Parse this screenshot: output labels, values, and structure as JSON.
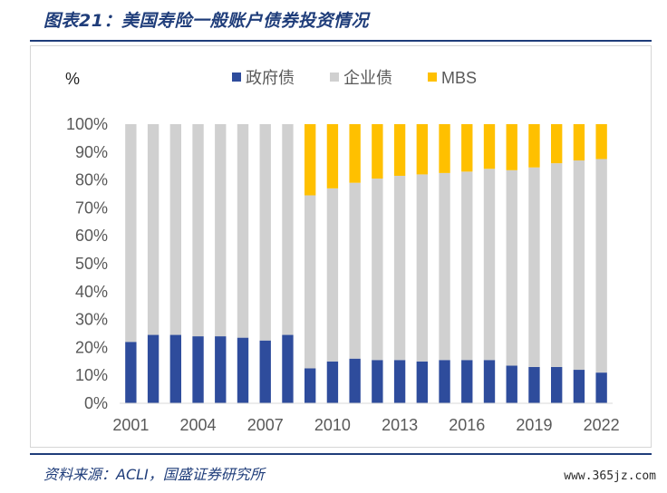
{
  "figure": {
    "title": "图表21：美国寿险一般账户债券投资情况",
    "source": "资料来源：ACLI，国盛证券研究所",
    "watermark": "www.365jz.com"
  },
  "chart_data": {
    "type": "bar",
    "stacked": true,
    "percent_stacked": true,
    "unit_label": "%",
    "categories": [
      "2001",
      "2002",
      "2003",
      "2004",
      "2005",
      "2006",
      "2007",
      "2008",
      "2009",
      "2010",
      "2011",
      "2012",
      "2013",
      "2014",
      "2015",
      "2016",
      "2017",
      "2018",
      "2019",
      "2020",
      "2021",
      "2022"
    ],
    "x_tick_labels": [
      "2001",
      "2004",
      "2007",
      "2010",
      "2013",
      "2016",
      "2019",
      "2022"
    ],
    "series": [
      {
        "name": "政府债",
        "color": "#2e4c9c",
        "values": [
          22,
          24.5,
          24.5,
          24,
          24,
          23.5,
          22.5,
          24.5,
          12.5,
          15,
          16,
          15.5,
          15.5,
          15,
          15.5,
          15.5,
          15.5,
          13.5,
          13,
          13,
          12,
          11
        ]
      },
      {
        "name": "企业债",
        "color": "#d0d0d0",
        "values": [
          78,
          75.5,
          75.5,
          76,
          76,
          76.5,
          77.5,
          75.5,
          62,
          62,
          63,
          65,
          66,
          67,
          67,
          67.5,
          68.5,
          70,
          71.5,
          73,
          75,
          76.5
        ]
      },
      {
        "name": "MBS",
        "color": "#ffc000",
        "values": [
          0,
          0,
          0,
          0,
          0,
          0,
          0,
          0,
          25.5,
          23,
          21,
          19.5,
          18.5,
          18,
          17.5,
          17,
          16,
          16.5,
          15.5,
          14,
          13,
          12.5
        ]
      }
    ],
    "ylim": [
      0,
      100
    ],
    "y_ticks": [
      0,
      10,
      20,
      30,
      40,
      50,
      60,
      70,
      80,
      90,
      100
    ],
    "y_tick_labels": [
      "0%",
      "10%",
      "20%",
      "30%",
      "40%",
      "50%",
      "60%",
      "70%",
      "80%",
      "90%",
      "100%"
    ],
    "legend_position": "top",
    "grid": false
  }
}
